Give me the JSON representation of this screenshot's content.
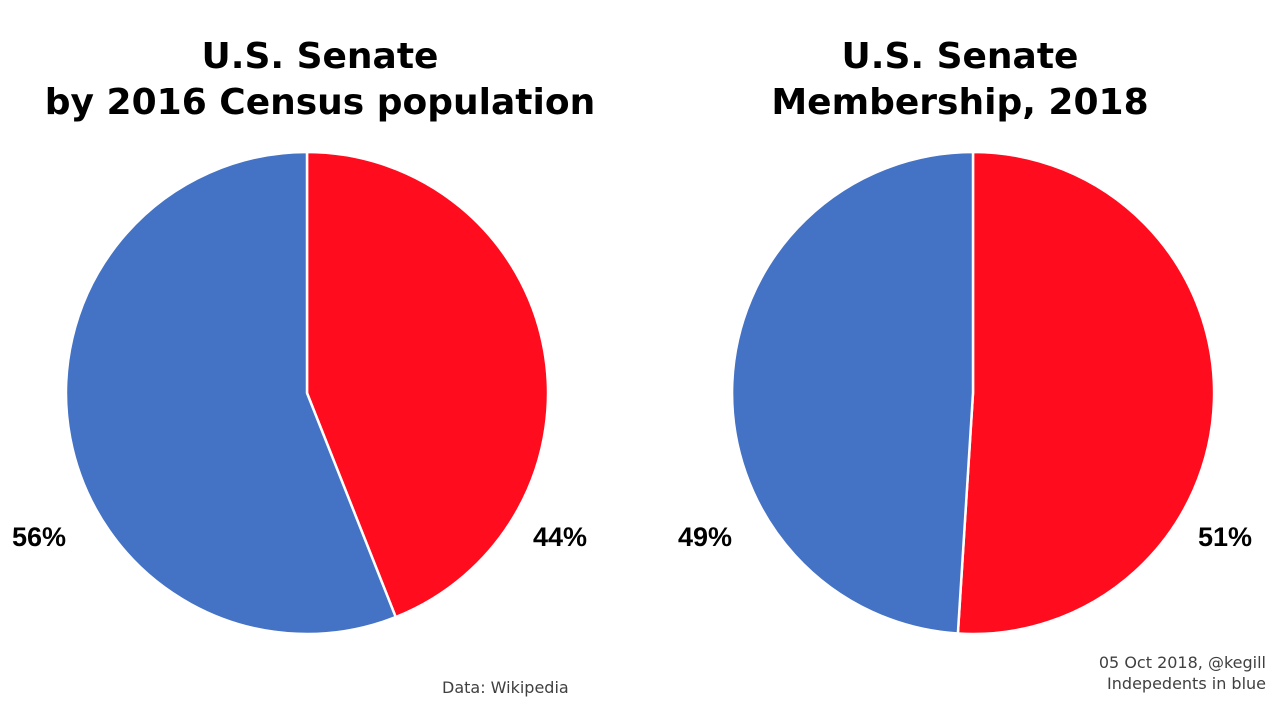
{
  "chart_data": [
    {
      "type": "pie",
      "title_lines": [
        "U.S. Senate",
        "by 2016 Census population"
      ],
      "slices": [
        {
          "label": "44%",
          "value": 44,
          "color": "#ff0d1f"
        },
        {
          "label": "56%",
          "value": 56,
          "color": "#4472c4"
        }
      ],
      "start": "12 o'clock",
      "direction": "clockwise",
      "footnote": "Data: Wikipedia"
    },
    {
      "type": "pie",
      "title_lines": [
        "U.S. Senate",
        "Membership, 2018"
      ],
      "slices": [
        {
          "label": "51%",
          "value": 51,
          "color": "#ff0d1f"
        },
        {
          "label": "49%",
          "value": 49,
          "color": "#4472c4"
        }
      ],
      "start": "12 o'clock",
      "direction": "clockwise",
      "footnote_lines": [
        "05 Oct 2018, @kegill",
        "Indepedents in blue"
      ]
    }
  ]
}
